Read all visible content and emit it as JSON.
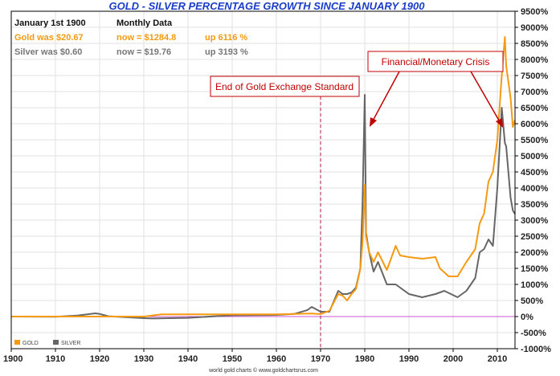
{
  "chart_data": {
    "type": "line",
    "title": "GOLD - SILVER PERCENTAGE GROWTH SINCE JANUARY 1900",
    "info": {
      "row1": [
        "January 1st 1900",
        "Monthly Data"
      ],
      "gold": [
        "Gold was $20.67",
        "now = $1284.8",
        "up 6116 %"
      ],
      "silver": [
        "Silver was $0.60",
        "now = $19.76",
        "up 3193 %"
      ]
    },
    "xlabel": "",
    "ylabel": "",
    "xlim": [
      1900,
      2014
    ],
    "ylim": [
      -1000,
      9500
    ],
    "x_ticks": [
      1900,
      1910,
      1920,
      1930,
      1940,
      1950,
      1960,
      1970,
      1980,
      1990,
      2000,
      2010
    ],
    "y_ticks": [
      9500,
      9000,
      8500,
      8000,
      7500,
      7000,
      6500,
      6000,
      5500,
      5000,
      4500,
      4000,
      3500,
      3000,
      2500,
      2000,
      1500,
      1000,
      500,
      0,
      -500,
      -1000
    ],
    "y_tick_labels": [
      "9500%",
      "9000%",
      "8500%",
      "8000%",
      "7500%",
      "7000%",
      "6500%",
      "6000%",
      "5500%",
      "5000%",
      "4500%",
      "4000%",
      "3500%",
      "3000%",
      "2500%",
      "2000%",
      "1500%",
      "1000%",
      "500%",
      "0%",
      "-500%",
      "-1000%"
    ],
    "grid": true,
    "legend_position": "bottom-left",
    "colors": {
      "gold": "#f59a12",
      "silver": "#666666",
      "baseline": "#cc55cc",
      "marker": "#b0174a",
      "annotation": "#c00000",
      "title": "#1a3cc8"
    },
    "series": [
      {
        "name": "GOLD",
        "x": [
          1900,
          1910,
          1920,
          1930,
          1934,
          1940,
          1950,
          1960,
          1968,
          1970,
          1972,
          1974,
          1975,
          1976,
          1977,
          1978,
          1979,
          1979.5,
          1980,
          1980.3,
          1981,
          1982,
          1983,
          1985,
          1987,
          1988,
          1990,
          1993,
          1996,
          1997,
          1999,
          2001,
          2003,
          2005,
          2006,
          2007,
          2008,
          2009,
          2010,
          2011,
          2011.7,
          2012,
          2013,
          2013.5,
          2014
        ],
        "y": [
          0,
          0,
          0,
          0,
          70,
          70,
          70,
          70,
          95,
          75,
          180,
          700,
          650,
          500,
          700,
          850,
          1500,
          2300,
          4100,
          2500,
          2000,
          1700,
          2000,
          1450,
          2200,
          1900,
          1850,
          1800,
          1850,
          1500,
          1250,
          1250,
          1700,
          2100,
          2900,
          3200,
          4200,
          4500,
          5500,
          7500,
          8700,
          7800,
          6800,
          5900,
          6116
        ]
      },
      {
        "name": "SILVER",
        "x": [
          1900,
          1910,
          1915,
          1919,
          1920,
          1922,
          1930,
          1932,
          1940,
          1950,
          1960,
          1964,
          1967,
          1968,
          1970,
          1972,
          1974,
          1975,
          1976,
          1977,
          1978,
          1979,
          1979.5,
          1980,
          1980.3,
          1981,
          1982,
          1983,
          1985,
          1987,
          1990,
          1993,
          1996,
          1998,
          2001,
          2003,
          2005,
          2006,
          2007,
          2008,
          2009,
          2010,
          2011,
          2011.7,
          2012,
          2013,
          2013.5,
          2014
        ],
        "y": [
          0,
          -5,
          30,
          100,
          80,
          10,
          -50,
          -60,
          -40,
          40,
          50,
          80,
          200,
          300,
          150,
          150,
          800,
          700,
          700,
          750,
          900,
          1500,
          3500,
          6900,
          2600,
          2000,
          1400,
          1700,
          1000,
          1000,
          700,
          600,
          700,
          800,
          600,
          800,
          1200,
          2000,
          2100,
          2400,
          2200,
          4000,
          6500,
          5400,
          5300,
          3700,
          3300,
          3193
        ]
      }
    ],
    "annotations": [
      {
        "text": "End of Gold Exchange Standard",
        "x": 1970
      },
      {
        "text": "Financial/Monetary Crisis"
      }
    ],
    "credit": "world gold charts © www.goldchartsrus.com"
  }
}
